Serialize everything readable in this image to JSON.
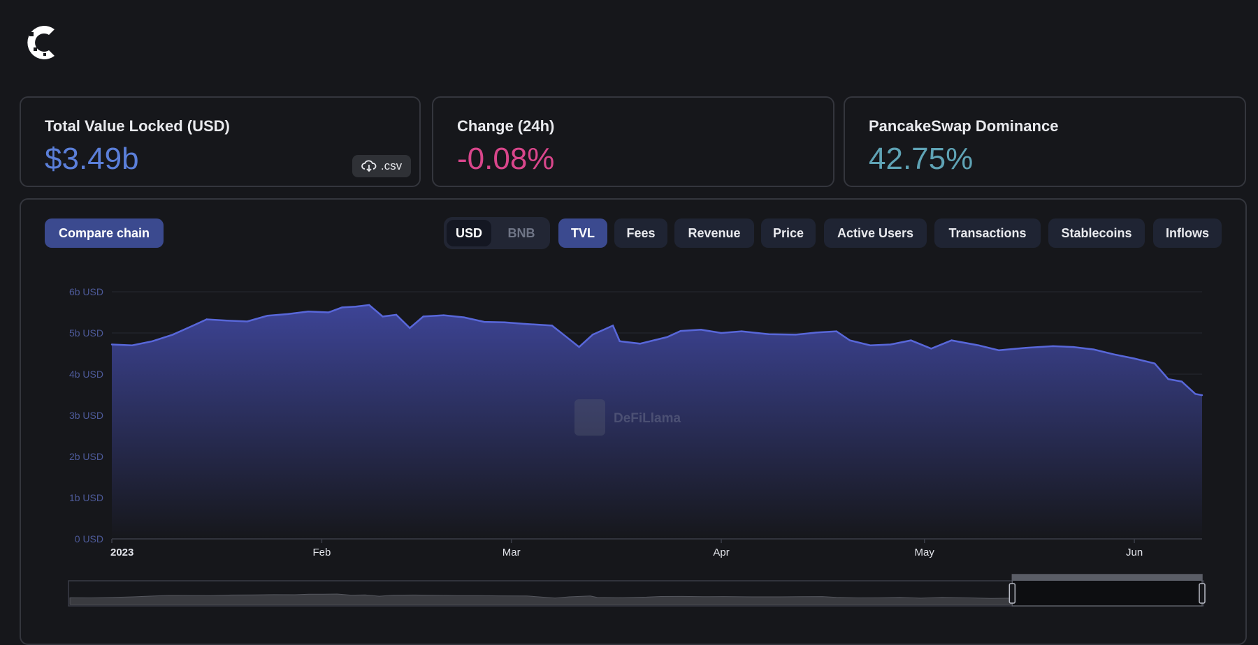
{
  "stats": {
    "tvl_label": "Total Value Locked (USD)",
    "tvl_value": "$3.49b",
    "csv_label": ".csv",
    "change_label": "Change (24h)",
    "change_value": "-0.08%",
    "dominance_label": "PancakeSwap Dominance",
    "dominance_value": "42.75%"
  },
  "toolbar": {
    "compare_label": "Compare chain",
    "currency_options": [
      "USD",
      "BNB"
    ],
    "currency_selected": "USD",
    "metric_tabs": [
      "TVL",
      "Fees",
      "Revenue",
      "Price",
      "Active Users",
      "Transactions",
      "Stablecoins",
      "Inflows"
    ],
    "metric_selected": "TVL"
  },
  "watermark": "DeFiLlama",
  "icons": {
    "logo": "site-logo",
    "csv": "cloud-download-icon"
  },
  "colors": {
    "accent": "#5b7fd9",
    "negative": "#d9468b",
    "teal": "#5fa3b5",
    "series_line": "#5867d9",
    "fill_top": "#3d4496"
  },
  "chart_data": {
    "type": "area",
    "title": "",
    "xlabel": "",
    "ylabel": "",
    "ylim": [
      0,
      6
    ],
    "y_ticks": [
      "0 USD",
      "1b USD",
      "2b USD",
      "3b USD",
      "4b USD",
      "5b USD",
      "6b USD"
    ],
    "x_tick_labels": [
      {
        "label": "2023",
        "date": "2023-01-01"
      },
      {
        "label": "Feb",
        "date": "2023-02-01"
      },
      {
        "label": "Mar",
        "date": "2023-03-01"
      },
      {
        "label": "Apr",
        "date": "2023-04-01"
      },
      {
        "label": "May",
        "date": "2023-05-01"
      },
      {
        "label": "Jun",
        "date": "2023-06-01"
      }
    ],
    "x_range": [
      "2023-01-01",
      "2023-06-11"
    ],
    "series": [
      {
        "unit": "b USD",
        "points": [
          [
            "2023-01-01",
            4.72
          ],
          [
            "2023-01-04",
            4.7
          ],
          [
            "2023-01-07",
            4.8
          ],
          [
            "2023-01-10",
            4.96
          ],
          [
            "2023-01-13",
            5.18
          ],
          [
            "2023-01-15",
            5.33
          ],
          [
            "2023-01-18",
            5.3
          ],
          [
            "2023-01-21",
            5.28
          ],
          [
            "2023-01-24",
            5.42
          ],
          [
            "2023-01-27",
            5.46
          ],
          [
            "2023-01-30",
            5.52
          ],
          [
            "2023-02-02",
            5.5
          ],
          [
            "2023-02-04",
            5.62
          ],
          [
            "2023-02-06",
            5.64
          ],
          [
            "2023-02-08",
            5.68
          ],
          [
            "2023-02-10",
            5.4
          ],
          [
            "2023-02-12",
            5.44
          ],
          [
            "2023-02-14",
            5.12
          ],
          [
            "2023-02-16",
            5.4
          ],
          [
            "2023-02-19",
            5.43
          ],
          [
            "2023-02-22",
            5.38
          ],
          [
            "2023-02-25",
            5.27
          ],
          [
            "2023-02-28",
            5.26
          ],
          [
            "2023-03-03",
            5.22
          ],
          [
            "2023-03-07",
            5.18
          ],
          [
            "2023-03-09",
            4.92
          ],
          [
            "2023-03-11",
            4.66
          ],
          [
            "2023-03-13",
            4.96
          ],
          [
            "2023-03-16",
            5.18
          ],
          [
            "2023-03-17",
            4.8
          ],
          [
            "2023-03-20",
            4.74
          ],
          [
            "2023-03-24",
            4.9
          ],
          [
            "2023-03-26",
            5.05
          ],
          [
            "2023-03-29",
            5.08
          ],
          [
            "2023-04-01",
            5.0
          ],
          [
            "2023-04-04",
            5.04
          ],
          [
            "2023-04-08",
            4.97
          ],
          [
            "2023-04-12",
            4.96
          ],
          [
            "2023-04-15",
            5.01
          ],
          [
            "2023-04-18",
            5.04
          ],
          [
            "2023-04-20",
            4.82
          ],
          [
            "2023-04-23",
            4.7
          ],
          [
            "2023-04-26",
            4.72
          ],
          [
            "2023-04-29",
            4.82
          ],
          [
            "2023-05-02",
            4.62
          ],
          [
            "2023-05-05",
            4.82
          ],
          [
            "2023-05-09",
            4.7
          ],
          [
            "2023-05-12",
            4.58
          ],
          [
            "2023-05-16",
            4.64
          ],
          [
            "2023-05-20",
            4.68
          ],
          [
            "2023-05-23",
            4.66
          ],
          [
            "2023-05-26",
            4.6
          ],
          [
            "2023-05-29",
            4.48
          ],
          [
            "2023-06-01",
            4.38
          ],
          [
            "2023-06-04",
            4.26
          ],
          [
            "2023-06-06",
            3.88
          ],
          [
            "2023-06-08",
            3.82
          ],
          [
            "2023-06-10",
            3.52
          ],
          [
            "2023-06-11",
            3.49
          ]
        ]
      }
    ],
    "grid": true,
    "legend": "none",
    "brush_selection": [
      "2023-05-15",
      "2023-06-11"
    ]
  }
}
